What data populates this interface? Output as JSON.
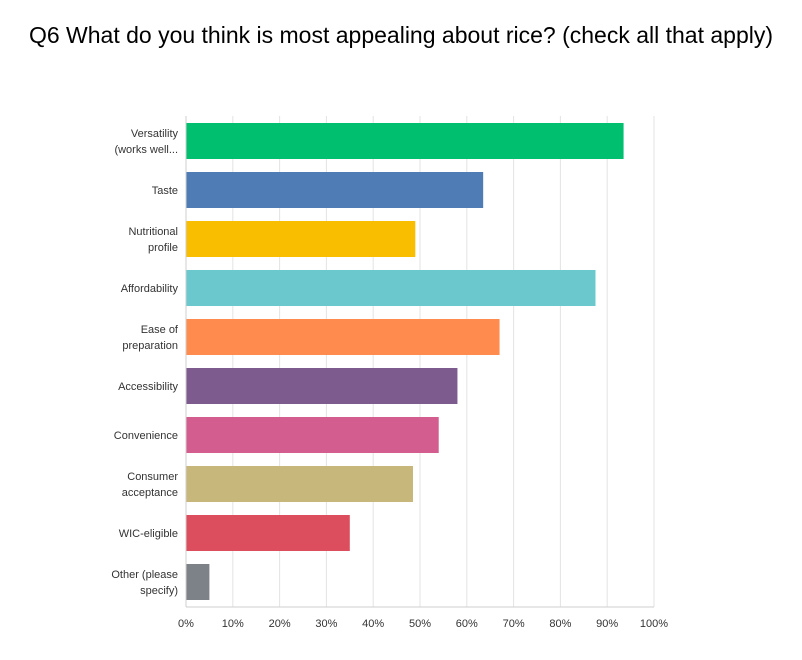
{
  "title": "Q6 What do you think is most appealing about rice? (check all that apply)",
  "chart_data": {
    "type": "bar",
    "orientation": "horizontal",
    "categories": [
      [
        "Versatility",
        "(works well..."
      ],
      [
        "Taste"
      ],
      [
        "Nutritional",
        "profile"
      ],
      [
        "Affordability"
      ],
      [
        "Ease of",
        "preparation"
      ],
      [
        "Accessibility"
      ],
      [
        "Convenience"
      ],
      [
        "Consumer",
        "acceptance"
      ],
      [
        "WIC-eligible"
      ],
      [
        "Other (please",
        "specify)"
      ]
    ],
    "values": [
      93.5,
      63.5,
      49,
      87.5,
      67,
      58,
      54,
      48.5,
      35,
      5
    ],
    "colors": [
      "#00bf6f",
      "#507cb6",
      "#f9be00",
      "#6bc8cd",
      "#ff8b4f",
      "#7d5b8e",
      "#d45d8f",
      "#c8b77a",
      "#dc4e5e",
      "#7c8288"
    ],
    "xlim": [
      0,
      100
    ],
    "xticks": [
      "0%",
      "10%",
      "20%",
      "30%",
      "40%",
      "50%",
      "60%",
      "70%",
      "80%",
      "90%",
      "100%"
    ],
    "grid": true,
    "legend": "none",
    "xlabel": "",
    "ylabel": ""
  }
}
